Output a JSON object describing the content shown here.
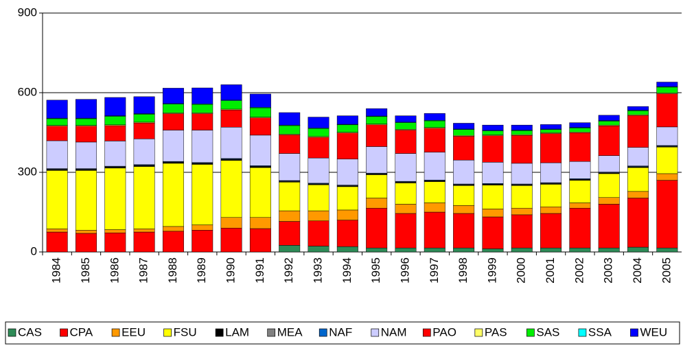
{
  "chart_data": {
    "type": "stacked-bar",
    "categories": [
      "1984",
      "1985",
      "1986",
      "1987",
      "1988",
      "1989",
      "1990",
      "1991",
      "1992",
      "1993",
      "1994",
      "1995",
      "1996",
      "1997",
      "1998",
      "1999",
      "2000",
      "2001",
      "2002",
      "2003",
      "2004",
      "2005"
    ],
    "ylim": [
      0,
      900
    ],
    "yticks": [
      0,
      300,
      600,
      900
    ],
    "grid": true,
    "legend": "bottom",
    "series": [
      {
        "name": "CAS",
        "color": "#2e8b57",
        "values": [
          0,
          0,
          0,
          0,
          0,
          0,
          0,
          0,
          25,
          22,
          20,
          15,
          15,
          15,
          15,
          12,
          15,
          15,
          15,
          15,
          18,
          15
        ]
      },
      {
        "name": "CPA",
        "color": "#ff0000",
        "values": [
          75,
          70,
          72,
          75,
          78,
          82,
          90,
          88,
          90,
          95,
          100,
          150,
          130,
          135,
          130,
          120,
          125,
          130,
          150,
          165,
          185,
          255
        ]
      },
      {
        "name": "EEU",
        "color": "#ff9900",
        "values": [
          12,
          12,
          12,
          12,
          18,
          20,
          40,
          42,
          40,
          38,
          38,
          38,
          35,
          35,
          30,
          30,
          25,
          25,
          20,
          25,
          25,
          25
        ]
      },
      {
        "name": "FSU",
        "color": "#ffff00",
        "values": [
          220,
          225,
          232,
          235,
          238,
          228,
          215,
          188,
          108,
          98,
          88,
          88,
          80,
          80,
          75,
          90,
          85,
          85,
          85,
          90,
          90,
          100
        ]
      },
      {
        "name": "LAM",
        "color": "#000000",
        "values": [
          3,
          3,
          3,
          3,
          3,
          3,
          3,
          3,
          2,
          2,
          2,
          2,
          2,
          2,
          2,
          2,
          2,
          2,
          2,
          2,
          2,
          2
        ]
      },
      {
        "name": "MEA",
        "color": "#808080",
        "values": [
          2,
          2,
          2,
          2,
          2,
          2,
          2,
          2,
          2,
          2,
          2,
          2,
          2,
          2,
          2,
          2,
          2,
          2,
          2,
          2,
          2,
          2
        ]
      },
      {
        "name": "NAF",
        "color": "#0066cc",
        "values": [
          2,
          2,
          2,
          2,
          2,
          2,
          2,
          2,
          2,
          2,
          2,
          2,
          2,
          2,
          2,
          2,
          2,
          2,
          2,
          2,
          2,
          2
        ]
      },
      {
        "name": "NAM",
        "color": "#ccccff",
        "values": [
          105,
          100,
          95,
          97,
          118,
          122,
          118,
          115,
          102,
          95,
          98,
          100,
          105,
          105,
          90,
          80,
          78,
          75,
          65,
          62,
          70,
          70
        ]
      },
      {
        "name": "PAO",
        "color": "#ff0000",
        "values": [
          55,
          60,
          58,
          60,
          62,
          62,
          65,
          65,
          70,
          78,
          98,
          82,
          88,
          90,
          90,
          100,
          105,
          110,
          108,
          112,
          120,
          125
        ]
      },
      {
        "name": "PAS",
        "color": "#ffff66",
        "values": [
          3,
          3,
          3,
          3,
          3,
          3,
          3,
          3,
          3,
          3,
          3,
          3,
          3,
          3,
          3,
          3,
          3,
          3,
          3,
          3,
          3,
          3
        ]
      },
      {
        "name": "SAS",
        "color": "#00ee00",
        "values": [
          25,
          25,
          32,
          30,
          33,
          32,
          32,
          35,
          32,
          30,
          28,
          28,
          25,
          25,
          22,
          15,
          15,
          12,
          15,
          15,
          15,
          22
        ]
      },
      {
        "name": "SSA",
        "color": "#00ffff",
        "values": [
          2,
          2,
          2,
          2,
          2,
          2,
          2,
          2,
          2,
          2,
          2,
          2,
          2,
          2,
          2,
          2,
          2,
          2,
          2,
          2,
          2,
          2
        ]
      },
      {
        "name": "WEU",
        "color": "#0000ff",
        "values": [
          68,
          71,
          69,
          64,
          58,
          60,
          58,
          50,
          47,
          41,
          32,
          28,
          24,
          26,
          22,
          20,
          19,
          17,
          18,
          20,
          14,
          17
        ]
      }
    ]
  }
}
